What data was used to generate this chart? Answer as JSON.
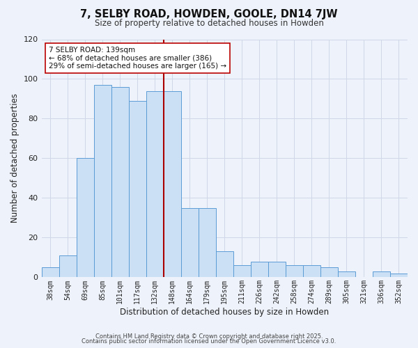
{
  "title": "7, SELBY ROAD, HOWDEN, GOOLE, DN14 7JW",
  "subtitle": "Size of property relative to detached houses in Howden",
  "xlabel": "Distribution of detached houses by size in Howden",
  "ylabel": "Number of detached properties",
  "bar_labels": [
    "38sqm",
    "54sqm",
    "69sqm",
    "85sqm",
    "101sqm",
    "117sqm",
    "132sqm",
    "148sqm",
    "164sqm",
    "179sqm",
    "195sqm",
    "211sqm",
    "226sqm",
    "242sqm",
    "258sqm",
    "274sqm",
    "289sqm",
    "305sqm",
    "321sqm",
    "336sqm",
    "352sqm"
  ],
  "bar_values": [
    5,
    11,
    60,
    97,
    96,
    89,
    94,
    94,
    35,
    35,
    13,
    6,
    8,
    8,
    6,
    6,
    5,
    3,
    0,
    3,
    2
  ],
  "bar_color": "#cce0f5",
  "bar_edge_color": "#5b9bd5",
  "grid_color": "#d0d8e8",
  "bg_color": "#eef2fa",
  "vline_x": 6.5,
  "vline_color": "#aa0000",
  "annotation_line1": "7 SELBY ROAD: 139sqm",
  "annotation_line2": "← 68% of detached houses are smaller (386)",
  "annotation_line3": "29% of semi-detached houses are larger (165) →",
  "annotation_box_color": "#ffffff",
  "annotation_box_edge_color": "#bb0000",
  "ylim": [
    0,
    120
  ],
  "yticks": [
    0,
    20,
    40,
    60,
    80,
    100,
    120
  ],
  "footer_line1": "Contains HM Land Registry data © Crown copyright and database right 2025.",
  "footer_line2": "Contains public sector information licensed under the Open Government Licence v3.0."
}
